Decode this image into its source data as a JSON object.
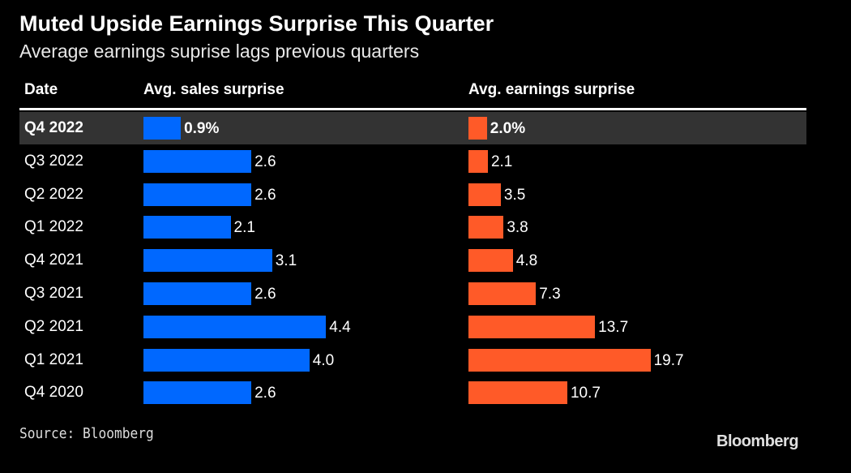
{
  "title": "Muted Upside Earnings Surprise This Quarter",
  "subtitle": "Average earnings suprise lags previous quarters",
  "source": "Source: Bloomberg",
  "logo": "Bloomberg",
  "colors": {
    "sales": "#0068ff",
    "earnings": "#ff5a28",
    "highlight": "#333333"
  },
  "chart_data": {
    "type": "bar",
    "headers": [
      "Date",
      "Avg. sales surprise",
      "Avg. earnings surprise"
    ],
    "categories": [
      "Q4 2022",
      "Q3 2022",
      "Q2 2022",
      "Q1 2022",
      "Q4 2021",
      "Q3 2021",
      "Q2 2021",
      "Q1 2021",
      "Q4 2020"
    ],
    "series": [
      {
        "name": "Avg. sales surprise",
        "values": [
          0.9,
          2.6,
          2.6,
          2.1,
          3.1,
          2.6,
          4.4,
          4.0,
          2.6
        ],
        "labels": [
          "0.9%",
          "2.6",
          "2.6",
          "2.1",
          "3.1",
          "2.6",
          "4.4",
          "4.0",
          "2.6"
        ]
      },
      {
        "name": "Avg. earnings surprise",
        "values": [
          2.0,
          2.1,
          3.5,
          3.8,
          4.8,
          7.3,
          13.7,
          19.7,
          10.7
        ],
        "labels": [
          "2.0%",
          "2.1",
          "3.5",
          "3.8",
          "4.8",
          "7.3",
          "13.7",
          "19.7",
          "10.7"
        ]
      }
    ],
    "highlight_row": "Q4 2022"
  }
}
